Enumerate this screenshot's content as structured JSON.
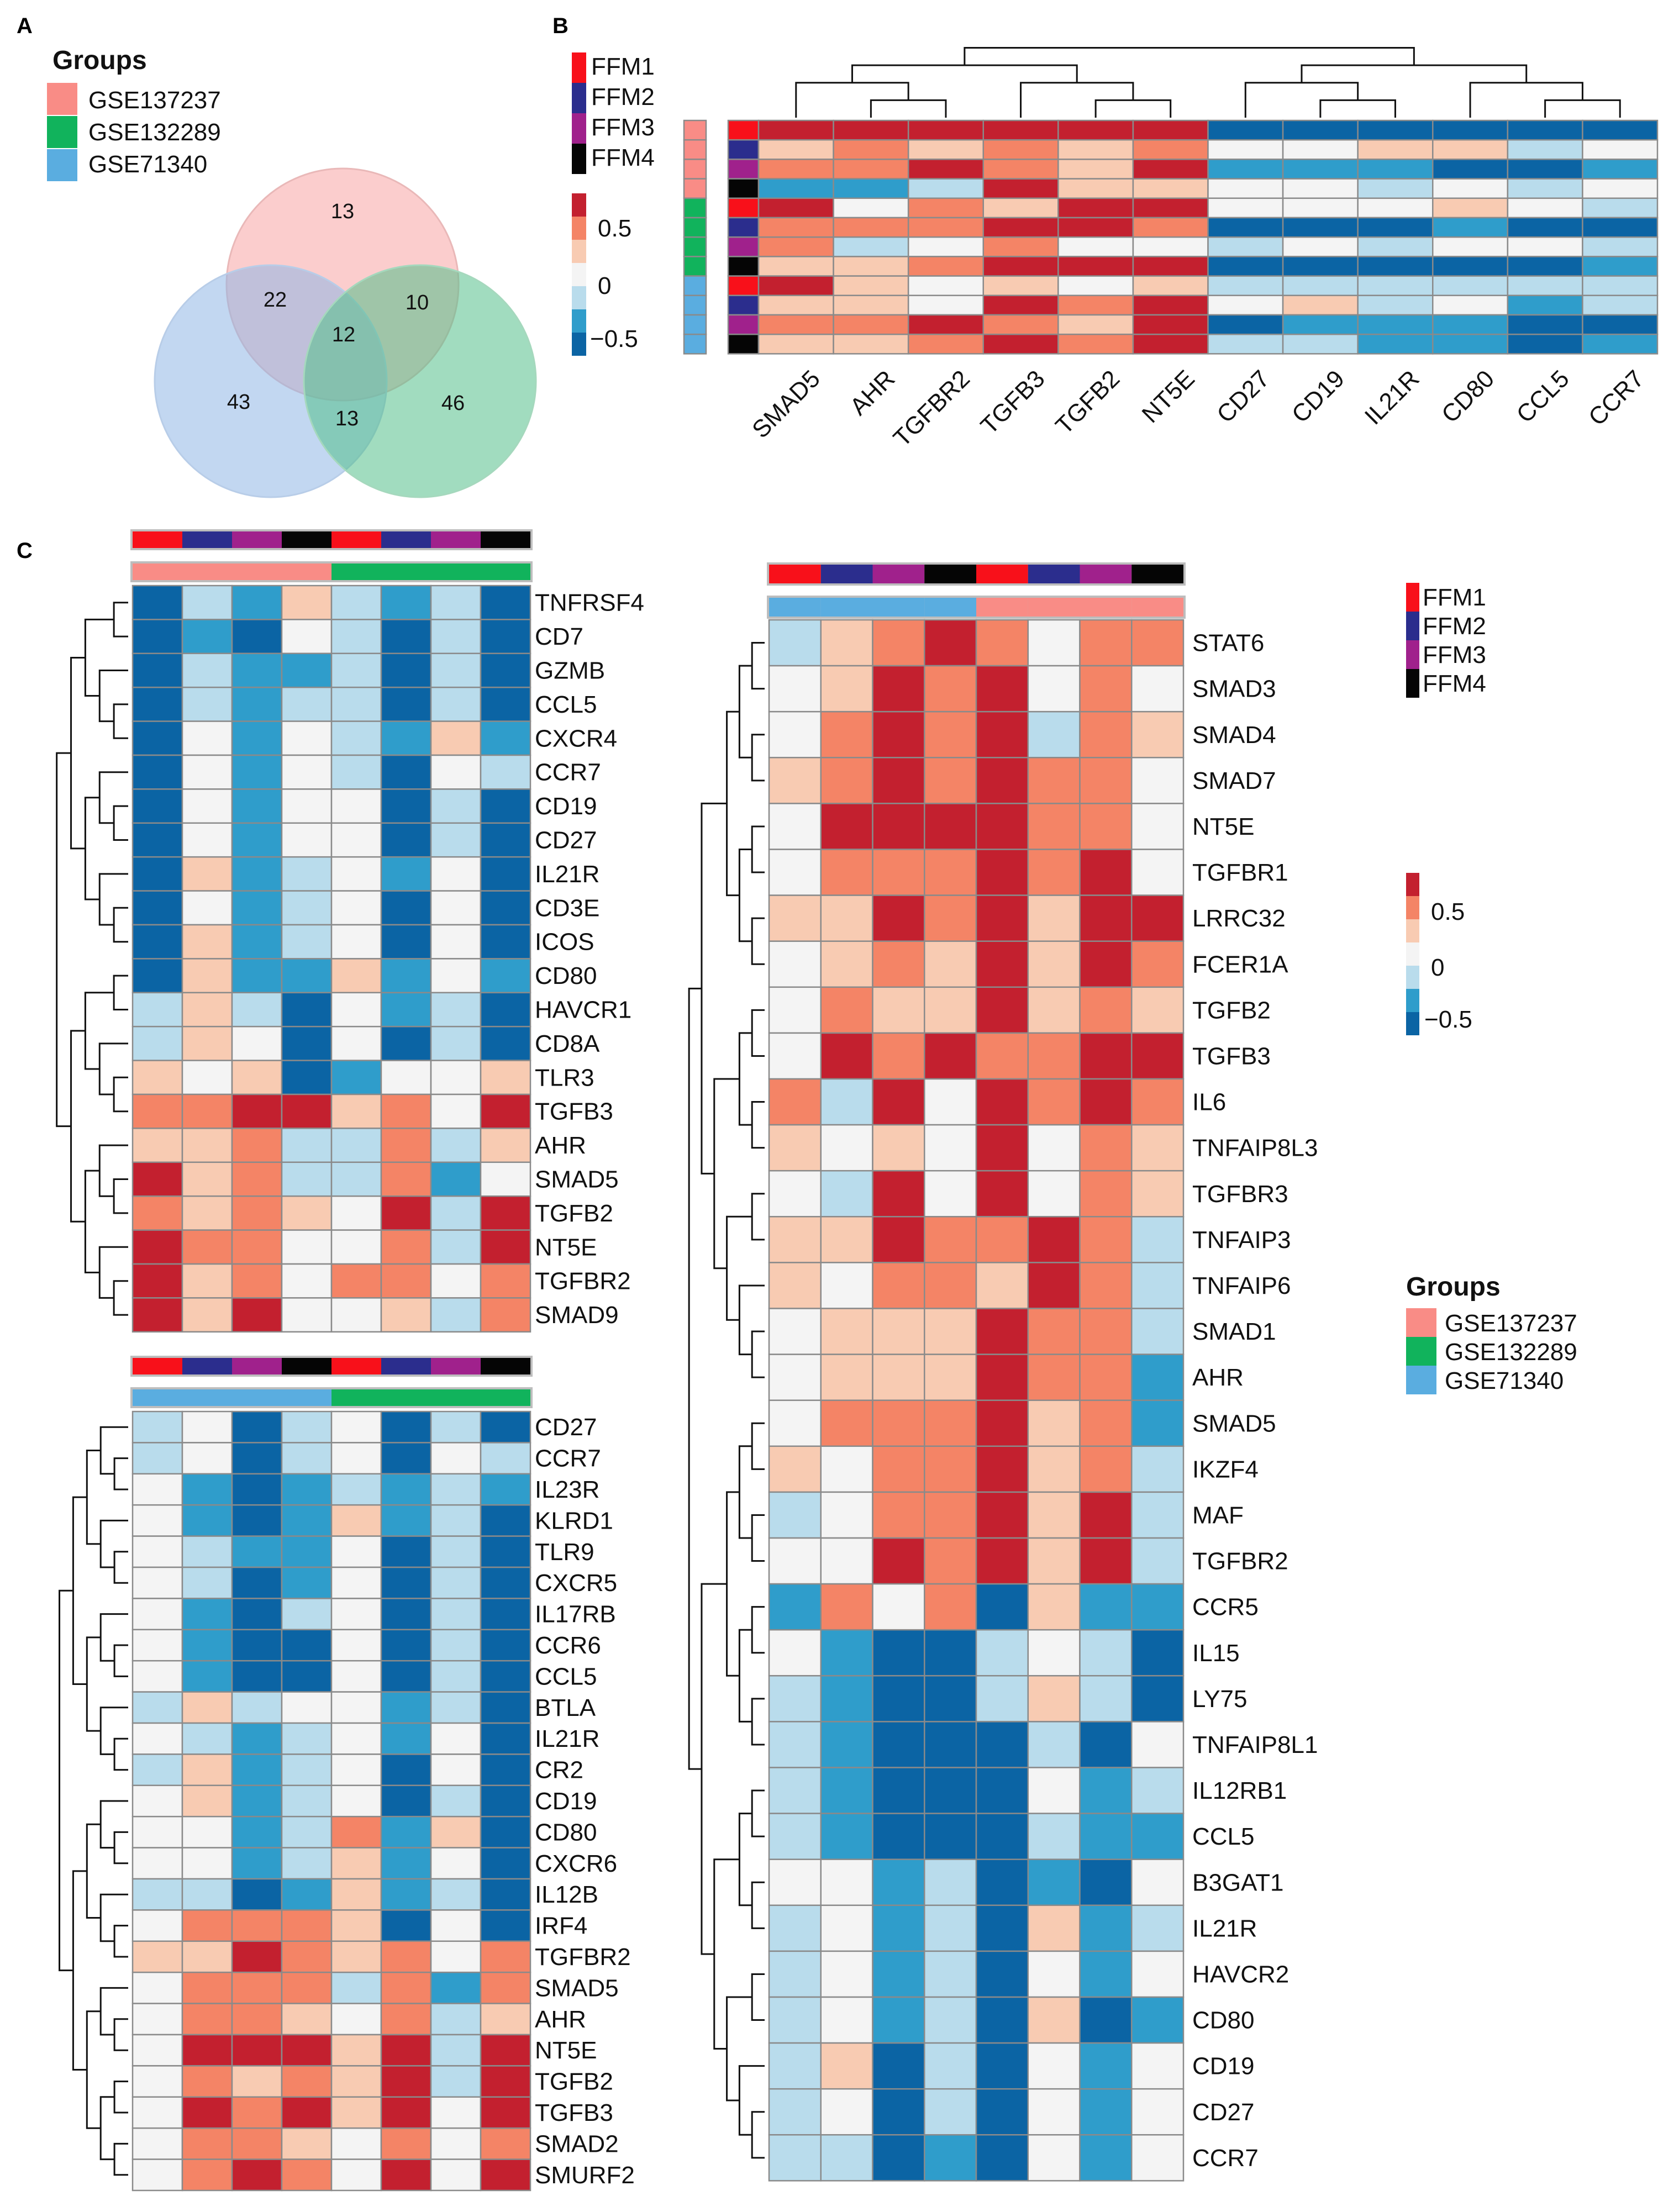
{
  "panels": {
    "a": "A",
    "b": "B",
    "c": "C"
  },
  "colors": {
    "FFM1": "#f8101a",
    "FFM2": "#2b2d8d",
    "FFM3": "#a0218c",
    "FFM4": "#050505",
    "GSE137237": "#f98c86",
    "GSE132289": "#11b35c",
    "GSE71340": "#5aade0",
    "scale": [
      "#0b64a4",
      "#2f9dcb",
      "#b9dcec",
      "#f4f4f4",
      "#f8cbb2",
      "#f48466",
      "#c3202f"
    ],
    "dendrogram": "#111111",
    "cell_border": "#8a8a8a"
  },
  "legend": {
    "groups_title": "Groups",
    "groups": [
      "GSE137237",
      "GSE132289",
      "GSE71340"
    ],
    "ffm": [
      "FFM1",
      "FFM2",
      "FFM3",
      "FFM4"
    ],
    "scale_ticks": [
      "0.5",
      "0",
      "−0.5"
    ]
  },
  "venn": {
    "sets": [
      "GSE137237",
      "GSE132289",
      "GSE71340"
    ],
    "only_GSE137237": 13,
    "only_GSE132289": 46,
    "only_GSE71340": 43,
    "GSE137237_GSE71340": 22,
    "GSE137237_GSE132289": 10,
    "GSE132289_GSE71340": 13,
    "all_three": 12
  },
  "chart_data": [
    {
      "panel": "B",
      "type": "heatmap",
      "title": "",
      "value_range": [
        -0.75,
        0.75
      ],
      "columns": [
        "SMAD5",
        "AHR",
        "TGFBR2",
        "TGFB3",
        "TGFB2",
        "NT5E",
        "CD27",
        "CD19",
        "IL21R",
        "CD80",
        "CCL5",
        "CCR7"
      ],
      "row_ffm": [
        "FFM1",
        "FFM2",
        "FFM3",
        "FFM4",
        "FFM1",
        "FFM2",
        "FFM3",
        "FFM4",
        "FFM1",
        "FFM2",
        "FFM3",
        "FFM4"
      ],
      "row_group": [
        "GSE137237",
        "GSE137237",
        "GSE137237",
        "GSE137237",
        "GSE132289",
        "GSE132289",
        "GSE132289",
        "GSE132289",
        "GSE71340",
        "GSE71340",
        "GSE71340",
        "GSE71340"
      ],
      "values": [
        [
          3,
          3,
          3,
          3,
          3,
          3,
          -3,
          -3,
          -3,
          -3,
          -3,
          -3
        ],
        [
          1,
          2,
          1,
          2,
          1,
          2,
          0,
          0,
          1,
          1,
          -1,
          0
        ],
        [
          2,
          2,
          3,
          2,
          1,
          3,
          -2,
          -2,
          -2,
          -3,
          -3,
          -2
        ],
        [
          -2,
          -2,
          -1,
          3,
          1,
          1,
          0,
          0,
          -1,
          0,
          -1,
          0
        ],
        [
          3,
          0,
          2,
          1,
          3,
          3,
          0,
          0,
          0,
          1,
          0,
          -1
        ],
        [
          2,
          2,
          2,
          3,
          3,
          2,
          -3,
          -3,
          -3,
          -2,
          -3,
          -3
        ],
        [
          2,
          -1,
          0,
          2,
          0,
          0,
          -1,
          0,
          -1,
          0,
          0,
          -1
        ],
        [
          1,
          1,
          2,
          3,
          3,
          3,
          -3,
          -3,
          -3,
          -3,
          -3,
          -2
        ],
        [
          3,
          1,
          0,
          1,
          0,
          1,
          -1,
          -1,
          -1,
          -1,
          -1,
          -1
        ],
        [
          1,
          1,
          0,
          3,
          2,
          3,
          0,
          1,
          -1,
          0,
          -2,
          -1
        ],
        [
          2,
          2,
          3,
          2,
          1,
          3,
          -3,
          -2,
          -2,
          -2,
          -3,
          -3
        ],
        [
          1,
          1,
          2,
          3,
          2,
          3,
          -1,
          -1,
          -2,
          -2,
          -3,
          -2
        ]
      ]
    },
    {
      "panel": "C-top-left",
      "type": "heatmap",
      "value_range": [
        -0.75,
        0.75
      ],
      "col_ffm": [
        "FFM1",
        "FFM2",
        "FFM3",
        "FFM4",
        "FFM1",
        "FFM2",
        "FFM3",
        "FFM4"
      ],
      "col_group": [
        "GSE137237",
        "GSE137237",
        "GSE137237",
        "GSE137237",
        "GSE132289",
        "GSE132289",
        "GSE132289",
        "GSE132289"
      ],
      "rows": [
        "TNFRSF4",
        "CD7",
        "GZMB",
        "CCL5",
        "CXCR4",
        "CCR7",
        "CD19",
        "CD27",
        "IL21R",
        "CD3E",
        "ICOS",
        "CD80",
        "HAVCR1",
        "CD8A",
        "TLR3",
        "TGFB3",
        "AHR",
        "SMAD5",
        "TGFB2",
        "NT5E",
        "TGFBR2",
        "SMAD9"
      ],
      "values": [
        [
          -3,
          -1,
          -2,
          1,
          -1,
          -2,
          -1,
          -3
        ],
        [
          -3,
          -2,
          -3,
          0,
          -1,
          -3,
          -1,
          -3
        ],
        [
          -3,
          -1,
          -2,
          -2,
          -1,
          -3,
          -1,
          -3
        ],
        [
          -3,
          -1,
          -2,
          -1,
          -1,
          -3,
          -1,
          -3
        ],
        [
          -3,
          0,
          -2,
          0,
          -1,
          -2,
          1,
          -2
        ],
        [
          -3,
          0,
          -2,
          0,
          -1,
          -3,
          0,
          -1
        ],
        [
          -3,
          0,
          -2,
          0,
          0,
          -3,
          -1,
          -3
        ],
        [
          -3,
          0,
          -2,
          0,
          0,
          -3,
          -1,
          -3
        ],
        [
          -3,
          1,
          -2,
          -1,
          0,
          -2,
          0,
          -3
        ],
        [
          -3,
          0,
          -2,
          -1,
          0,
          -3,
          0,
          -3
        ],
        [
          -3,
          1,
          -2,
          -1,
          0,
          -3,
          0,
          -3
        ],
        [
          -3,
          1,
          -2,
          -2,
          1,
          -2,
          0,
          -2
        ],
        [
          -1,
          1,
          -1,
          -3,
          0,
          -2,
          -1,
          -3
        ],
        [
          -1,
          1,
          0,
          -3,
          0,
          -3,
          -1,
          -3
        ],
        [
          1,
          0,
          1,
          -3,
          -2,
          0,
          0,
          1
        ],
        [
          2,
          2,
          3,
          3,
          1,
          2,
          0,
          3
        ],
        [
          1,
          1,
          2,
          -1,
          -1,
          2,
          -1,
          1
        ],
        [
          3,
          1,
          2,
          -1,
          -1,
          2,
          -2,
          0
        ],
        [
          2,
          1,
          2,
          1,
          0,
          3,
          -1,
          3
        ],
        [
          3,
          2,
          2,
          0,
          0,
          2,
          -1,
          3
        ],
        [
          3,
          1,
          2,
          0,
          2,
          2,
          0,
          2
        ],
        [
          3,
          1,
          3,
          0,
          0,
          1,
          -1,
          2
        ]
      ]
    },
    {
      "panel": "C-bottom-left",
      "type": "heatmap",
      "value_range": [
        -0.75,
        0.75
      ],
      "col_ffm": [
        "FFM1",
        "FFM2",
        "FFM3",
        "FFM4",
        "FFM1",
        "FFM2",
        "FFM3",
        "FFM4"
      ],
      "col_group": [
        "GSE71340",
        "GSE71340",
        "GSE71340",
        "GSE71340",
        "GSE132289",
        "GSE132289",
        "GSE132289",
        "GSE132289"
      ],
      "rows": [
        "CD27",
        "CCR7",
        "IL23R",
        "KLRD1",
        "TLR9",
        "CXCR5",
        "IL17RB",
        "CCR6",
        "CCL5",
        "BTLA",
        "IL21R",
        "CR2",
        "CD19",
        "CD80",
        "CXCR6",
        "IL12B",
        "IRF4",
        "TGFBR2",
        "SMAD5",
        "AHR",
        "NT5E",
        "TGFB2",
        "TGFB3",
        "SMAD2",
        "SMURF2"
      ],
      "values": [
        [
          -1,
          0,
          -3,
          -1,
          0,
          -3,
          -1,
          -3
        ],
        [
          -1,
          0,
          -3,
          -1,
          0,
          -3,
          0,
          -1
        ],
        [
          0,
          -2,
          -3,
          -2,
          -1,
          -2,
          -1,
          -2
        ],
        [
          0,
          -2,
          -3,
          -2,
          1,
          -2,
          -1,
          -3
        ],
        [
          0,
          -1,
          -2,
          -2,
          0,
          -3,
          -1,
          -3
        ],
        [
          0,
          -1,
          -3,
          -2,
          0,
          -3,
          -1,
          -3
        ],
        [
          0,
          -2,
          -3,
          -1,
          0,
          -3,
          -1,
          -3
        ],
        [
          0,
          -2,
          -3,
          -3,
          0,
          -3,
          -1,
          -3
        ],
        [
          0,
          -2,
          -3,
          -3,
          0,
          -3,
          -1,
          -3
        ],
        [
          -1,
          1,
          -1,
          0,
          0,
          -2,
          -1,
          -3
        ],
        [
          0,
          -1,
          -2,
          -1,
          0,
          -2,
          0,
          -3
        ],
        [
          -1,
          1,
          -2,
          -1,
          0,
          -3,
          0,
          -3
        ],
        [
          0,
          1,
          -2,
          -1,
          0,
          -3,
          -1,
          -3
        ],
        [
          0,
          0,
          -2,
          -1,
          2,
          -2,
          1,
          -3
        ],
        [
          0,
          0,
          -2,
          -1,
          1,
          -2,
          0,
          -3
        ],
        [
          -1,
          -1,
          -3,
          -2,
          1,
          -2,
          -1,
          -3
        ],
        [
          0,
          2,
          2,
          2,
          1,
          -3,
          0,
          -3
        ],
        [
          1,
          1,
          3,
          2,
          1,
          2,
          0,
          2
        ],
        [
          0,
          2,
          2,
          2,
          -1,
          2,
          -2,
          2
        ],
        [
          0,
          2,
          2,
          1,
          0,
          2,
          -1,
          1
        ],
        [
          0,
          3,
          3,
          3,
          1,
          3,
          -1,
          3
        ],
        [
          0,
          2,
          1,
          2,
          1,
          3,
          -1,
          3
        ],
        [
          0,
          3,
          2,
          3,
          1,
          3,
          0,
          3
        ],
        [
          0,
          2,
          2,
          1,
          0,
          2,
          0,
          2
        ],
        [
          0,
          2,
          3,
          2,
          0,
          3,
          0,
          3
        ]
      ]
    },
    {
      "panel": "C-right",
      "type": "heatmap",
      "value_range": [
        -0.75,
        0.75
      ],
      "col_ffm": [
        "FFM1",
        "FFM2",
        "FFM3",
        "FFM4",
        "FFM1",
        "FFM2",
        "FFM3",
        "FFM4"
      ],
      "col_group": [
        "GSE71340",
        "GSE71340",
        "GSE71340",
        "GSE71340",
        "GSE137237",
        "GSE137237",
        "GSE137237",
        "GSE137237"
      ],
      "rows": [
        "STAT6",
        "SMAD3",
        "SMAD4",
        "SMAD7",
        "NT5E",
        "TGFBR1",
        "LRRC32",
        "FCER1A",
        "TGFB2",
        "TGFB3",
        "IL6",
        "TNFAIP8L3",
        "TGFBR3",
        "TNFAIP3",
        "TNFAIP6",
        "SMAD1",
        "AHR",
        "SMAD5",
        "IKZF4",
        "MAF",
        "TGFBR2",
        "CCR5",
        "IL15",
        "LY75",
        "TNFAIP8L1",
        "IL12RB1",
        "CCL5",
        "B3GAT1",
        "IL21R",
        "HAVCR2",
        "CD80",
        "CD19",
        "CD27",
        "CCR7"
      ],
      "values": [
        [
          -1,
          1,
          2,
          3,
          2,
          0,
          2,
          2
        ],
        [
          0,
          1,
          3,
          2,
          3,
          0,
          2,
          0
        ],
        [
          0,
          2,
          3,
          2,
          3,
          -1,
          2,
          1
        ],
        [
          1,
          2,
          3,
          2,
          3,
          2,
          2,
          0
        ],
        [
          0,
          3,
          3,
          3,
          3,
          2,
          2,
          0
        ],
        [
          0,
          2,
          2,
          2,
          3,
          2,
          3,
          0
        ],
        [
          1,
          1,
          3,
          2,
          3,
          1,
          3,
          3
        ],
        [
          0,
          1,
          2,
          1,
          3,
          1,
          3,
          2
        ],
        [
          0,
          2,
          1,
          1,
          3,
          1,
          2,
          1
        ],
        [
          0,
          3,
          2,
          3,
          2,
          2,
          3,
          3
        ],
        [
          2,
          -1,
          3,
          0,
          3,
          2,
          3,
          2
        ],
        [
          1,
          0,
          1,
          0,
          3,
          0,
          2,
          1
        ],
        [
          0,
          -1,
          3,
          0,
          3,
          0,
          2,
          1
        ],
        [
          1,
          1,
          3,
          2,
          2,
          3,
          2,
          -1
        ],
        [
          1,
          0,
          2,
          2,
          1,
          3,
          2,
          -1
        ],
        [
          0,
          1,
          1,
          1,
          3,
          2,
          2,
          -1
        ],
        [
          0,
          1,
          1,
          1,
          3,
          2,
          2,
          -2
        ],
        [
          0,
          2,
          2,
          2,
          3,
          1,
          2,
          -2
        ],
        [
          1,
          0,
          2,
          2,
          3,
          1,
          2,
          -1
        ],
        [
          -1,
          0,
          2,
          2,
          3,
          1,
          3,
          -1
        ],
        [
          0,
          0,
          3,
          2,
          3,
          1,
          3,
          -1
        ],
        [
          -2,
          2,
          0,
          2,
          -3,
          1,
          -2,
          -2
        ],
        [
          0,
          -2,
          -3,
          -3,
          -1,
          0,
          -1,
          -3
        ],
        [
          -1,
          -2,
          -3,
          -3,
          -1,
          1,
          -1,
          -3
        ],
        [
          -1,
          -2,
          -3,
          -3,
          -3,
          -1,
          -3,
          0
        ],
        [
          -1,
          -2,
          -3,
          -3,
          -3,
          0,
          -2,
          -1
        ],
        [
          -1,
          -2,
          -3,
          -3,
          -3,
          -1,
          -2,
          -2
        ],
        [
          0,
          0,
          -2,
          -1,
          -3,
          -2,
          -3,
          0
        ],
        [
          -1,
          0,
          -2,
          -1,
          -3,
          1,
          -2,
          -1
        ],
        [
          -1,
          0,
          -2,
          -1,
          -3,
          0,
          -2,
          0
        ],
        [
          -1,
          0,
          -2,
          -1,
          -3,
          1,
          -3,
          -2
        ],
        [
          -1,
          1,
          -3,
          -1,
          -3,
          0,
          -2,
          0
        ],
        [
          -1,
          0,
          -3,
          -1,
          -3,
          0,
          -2,
          0
        ],
        [
          -1,
          -1,
          -3,
          -2,
          -3,
          0,
          -2,
          0
        ]
      ]
    }
  ]
}
